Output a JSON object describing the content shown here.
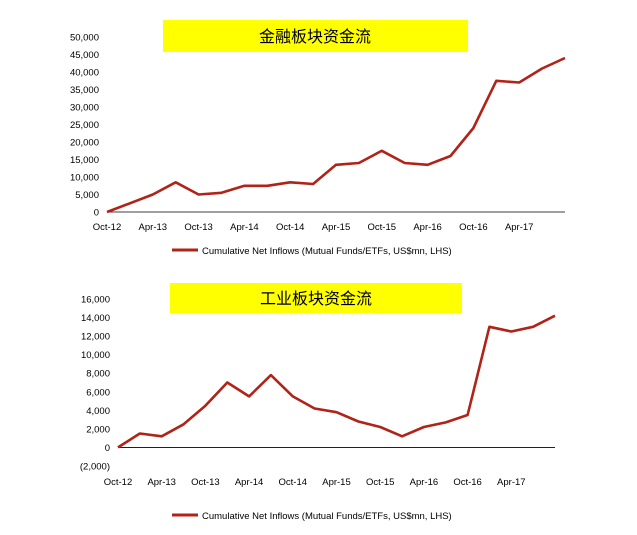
{
  "chart_data": [
    {
      "type": "line",
      "title": "金融板块资金流",
      "x": [
        "Oct-12",
        "Jan-13",
        "Apr-13",
        "Jul-13",
        "Oct-13",
        "Jan-14",
        "Apr-14",
        "Jul-14",
        "Oct-14",
        "Jan-15",
        "Apr-15",
        "Jul-15",
        "Oct-15",
        "Jan-16",
        "Apr-16",
        "Jul-16",
        "Oct-16",
        "Jan-17",
        "Apr-17",
        "Jul-17",
        "Sep-17"
      ],
      "xticks": [
        "Oct-12",
        "Apr-13",
        "Oct-13",
        "Apr-14",
        "Oct-14",
        "Apr-15",
        "Oct-15",
        "Apr-16",
        "Oct-16",
        "Apr-17"
      ],
      "yticks": [
        "0",
        "5,000",
        "10,000",
        "15,000",
        "20,000",
        "25,000",
        "30,000",
        "35,000",
        "40,000",
        "45,000",
        "50,000"
      ],
      "ylim": [
        0,
        50000
      ],
      "series": [
        {
          "name": "Cumulative Net Inflows (Mutual Funds/ETFs, US$mn, LHS)",
          "color": "#b02318",
          "values": [
            0,
            2500,
            5000,
            8500,
            5000,
            5500,
            7500,
            7500,
            8500,
            8000,
            13500,
            14000,
            17500,
            14000,
            13500,
            16000,
            24000,
            37500,
            37000,
            41000,
            44000
          ]
        }
      ],
      "legend": "bottom"
    },
    {
      "type": "line",
      "title": "工业板块资金流",
      "x": [
        "Oct-12",
        "Jan-13",
        "Apr-13",
        "Jul-13",
        "Oct-13",
        "Jan-14",
        "Apr-14",
        "Jul-14",
        "Oct-14",
        "Jan-15",
        "Apr-15",
        "Jul-15",
        "Oct-15",
        "Jan-16",
        "Apr-16",
        "Jul-16",
        "Oct-16",
        "Jan-17",
        "Apr-17",
        "Jul-17",
        "Sep-17"
      ],
      "xticks": [
        "Oct-12",
        "Apr-13",
        "Oct-13",
        "Apr-14",
        "Oct-14",
        "Apr-15",
        "Oct-15",
        "Apr-16",
        "Oct-16",
        "Apr-17"
      ],
      "yticks": [
        "(2,000)",
        "0",
        "2,000",
        "4,000",
        "6,000",
        "8,000",
        "10,000",
        "12,000",
        "14,000",
        "16,000"
      ],
      "ylim": [
        -2000,
        16000
      ],
      "series": [
        {
          "name": "Cumulative Net Inflows (Mutual Funds/ETFs, US$mn, LHS)",
          "color": "#b02318",
          "values": [
            0,
            1500,
            1200,
            2500,
            4500,
            7000,
            5500,
            7800,
            5500,
            4200,
            3800,
            2800,
            2200,
            1200,
            2200,
            2700,
            3500,
            13000,
            12500,
            13000,
            14200
          ]
        }
      ],
      "legend": "bottom"
    }
  ]
}
